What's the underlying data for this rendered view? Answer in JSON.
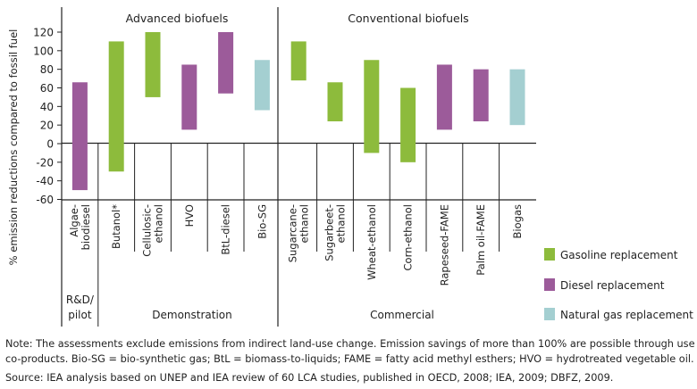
{
  "chart_data": {
    "type": "bar",
    "subtype": "floating-range",
    "ylabel": "% emission reductions compared to fossil fuel",
    "ylim": [
      -60,
      120
    ],
    "yticks": [
      -60,
      -40,
      -20,
      0,
      20,
      40,
      60,
      80,
      100,
      120
    ],
    "grid": false,
    "legend_position": "right",
    "section_titles": [
      "Advanced biofuels",
      "Conventional biofuels"
    ],
    "stages": [
      "R&D/ pilot",
      "Demonstration",
      "Commercial"
    ],
    "legend": [
      {
        "key": "gasoline",
        "label": "Gasoline replacement",
        "color": "#8dbb3c"
      },
      {
        "key": "diesel",
        "label": "Diesel replacement",
        "color": "#9c5b9a"
      },
      {
        "key": "natgas",
        "label": "Natural gas replacement",
        "color": "#a4cfd1"
      }
    ],
    "categories": [
      {
        "label": "Algae-biodiesel",
        "low": -50,
        "high": 66,
        "type": "diesel"
      },
      {
        "label": "Butanol*",
        "low": -30,
        "high": 110,
        "type": "gasoline"
      },
      {
        "label": "Cellulosic-ethanol",
        "low": 50,
        "high": 120,
        "type": "gasoline"
      },
      {
        "label": "HVO",
        "low": 15,
        "high": 85,
        "type": "diesel"
      },
      {
        "label": "BtL-diesel",
        "low": 54,
        "high": 120,
        "type": "diesel"
      },
      {
        "label": "Bio-SG",
        "low": 36,
        "high": 90,
        "type": "natgas"
      },
      {
        "label": "Sugarcane-ethanol",
        "low": 68,
        "high": 110,
        "type": "gasoline"
      },
      {
        "label": "Sugarbeet-ethanol",
        "low": 24,
        "high": 66,
        "type": "gasoline"
      },
      {
        "label": "Wheat-ethanol",
        "low": -10,
        "high": 90,
        "type": "gasoline"
      },
      {
        "label": "Corn-ethanol",
        "low": -20,
        "high": 60,
        "type": "gasoline"
      },
      {
        "label": "Rapeseed-FAME",
        "low": 15,
        "high": 85,
        "type": "diesel"
      },
      {
        "label": "Palm oil-FAME",
        "low": 24,
        "high": 80,
        "type": "diesel"
      },
      {
        "label": "Biogas",
        "low": 20,
        "high": 80,
        "type": "natgas"
      }
    ]
  },
  "notes": {
    "line1": "Note: The assessments exclude emissions from indirect land-use change. Emission savings of more than 100% are possible through use of",
    "line2": "co-products. Bio-SG = bio-synthetic gas; BtL = biomass-to-liquids; FAME = fatty acid methyl esthers; HVO = hydrotreated vegetable oil.",
    "source": "Source: IEA analysis based on UNEP and IEA review of 60 LCA studies, published in OECD, 2008; IEA, 2009; DBFZ, 2009."
  }
}
